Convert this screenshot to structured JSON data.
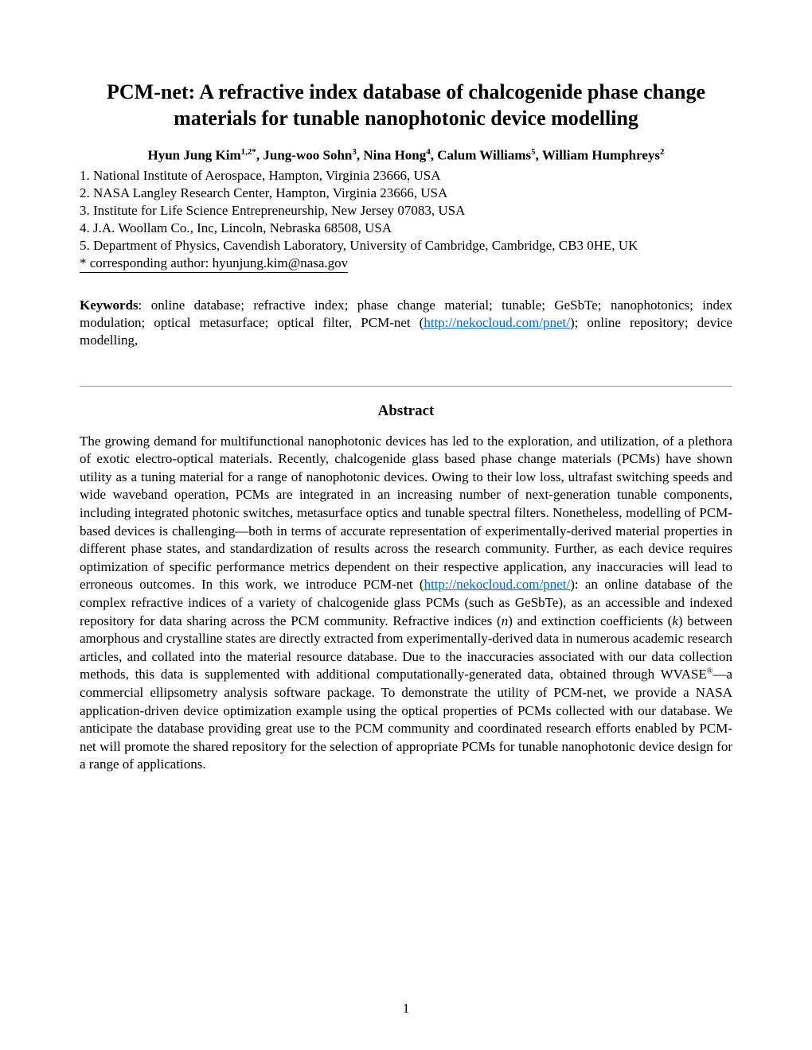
{
  "title": "PCM-net: A refractive index database of chalcogenide phase change materials for tunable nanophotonic device modelling",
  "authors_html": "Hyun Jung Kim<sup>1,2*</sup>, Jung-woo Sohn<sup>3</sup>, Nina Hong<sup>4</sup>, Calum Williams<sup>5</sup>, William Humphreys<sup>2</sup>",
  "affiliations": [
    "1. National Institute of Aerospace, Hampton, Virginia 23666, USA",
    "2. NASA Langley Research Center, Hampton, Virginia 23666, USA",
    "3. Institute for Life Science Entrepreneurship, New Jersey 07083, USA",
    "4. J.A. Woollam Co., Inc, Lincoln, Nebraska 68508, USA",
    "5. Department of Physics, Cavendish Laboratory, University of Cambridge, Cambridge, CB3 0HE, UK"
  ],
  "corresponding": "*  corresponding author: hyunjung.kim@nasa.gov",
  "keywords_label": "Keywords",
  "keywords_pre": ": online database; refractive index; phase change material; tunable; GeSbTe; nanophotonics; index modulation; optical metasurface; optical filter, PCM-net (",
  "keywords_link": "http://nekocloud.com/pnet/",
  "keywords_post": "); online repository; device modelling,",
  "abstract_label": "Abstract",
  "abstract_p1_pre": "The growing demand for multifunctional nanophotonic devices has led to the exploration, and utilization, of a plethora of exotic electro-optical materials. Recently, chalcogenide glass based phase change materials (PCMs) have shown utility as a tuning material for a range of nanophotonic devices. Owing to their low loss, ultrafast switching speeds and wide waveband operation, PCMs are integrated in an increasing number of next-generation tunable components, including integrated photonic switches, metasurface optics and tunable spectral filters. Nonetheless, modelling of PCM-based devices is challenging—both in terms of accurate representation of experimentally-derived material properties in different phase states, and standardization of results across the research community. Further, as each device requires optimization of specific performance metrics dependent on their respective application, any inaccuracies will lead to erroneous outcomes. In this work, we introduce PCM-net (",
  "abstract_link": "http://nekocloud.com/pnet/",
  "abstract_p1_mid": "): an online database of the complex refractive indices of a variety of chalcogenide glass PCMs (such as GeSbTe), as an accessible and indexed repository for data sharing across the PCM community. Refractive indices (",
  "abstract_n": "n",
  "abstract_p1_mid2": ") and extinction coefficients (",
  "abstract_k": "k",
  "abstract_p1_mid3": ") between amorphous and crystalline states are directly extracted from experimentally-derived data in numerous academic research articles, and collated into the material resource database. Due to the inaccuracies associated with our data collection methods, this data is supplemented with additional computationally-generated data, obtained through WVASE",
  "abstract_reg": "®",
  "abstract_p1_post": "—a commercial ellipsometry analysis software package. To demonstrate the utility of PCM-net, we provide a NASA application-driven device optimization example using the optical properties of PCMs collected with our database. We anticipate the database providing great use to the PCM community and coordinated research efforts enabled by PCM-net will promote the shared repository for the selection of appropriate PCMs for tunable nanophotonic device design for a range of applications.",
  "page_number": "1",
  "colors": {
    "link": "#0563c1",
    "text": "#000000",
    "hr": "#999999",
    "bg": "#ffffff"
  }
}
